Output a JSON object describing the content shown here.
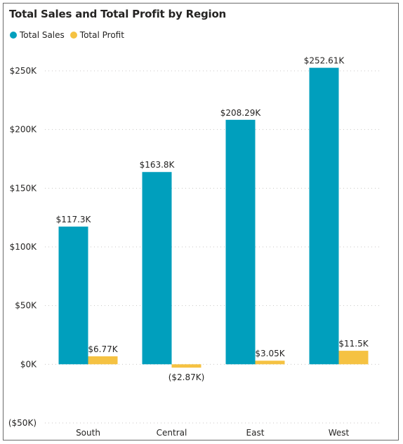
{
  "chart_data": {
    "type": "bar",
    "title": "Total Sales and Total Profit by Region",
    "categories": [
      "South",
      "Central",
      "East",
      "West"
    ],
    "series": [
      {
        "name": "Total Sales",
        "color": "#009FBD",
        "values": [
          117300,
          163800,
          208290,
          252610
        ],
        "labels": [
          "$117.3K",
          "$163.8K",
          "$208.29K",
          "$252.61K"
        ]
      },
      {
        "name": "Total Profit",
        "color": "#F5C242",
        "values": [
          6770,
          -2870,
          3050,
          11500
        ],
        "labels": [
          "$6.77K",
          "($2.87K)",
          "$3.05K",
          "$11.5K"
        ]
      }
    ],
    "yticks": [
      -50000,
      0,
      50000,
      100000,
      150000,
      200000,
      250000
    ],
    "ytick_labels": [
      "($50K)",
      "$0K",
      "$50K",
      "$100K",
      "$150K",
      "$200K",
      "$250K"
    ],
    "ylim": [
      -50000,
      250000
    ],
    "grid": true,
    "legend": "top-left"
  }
}
